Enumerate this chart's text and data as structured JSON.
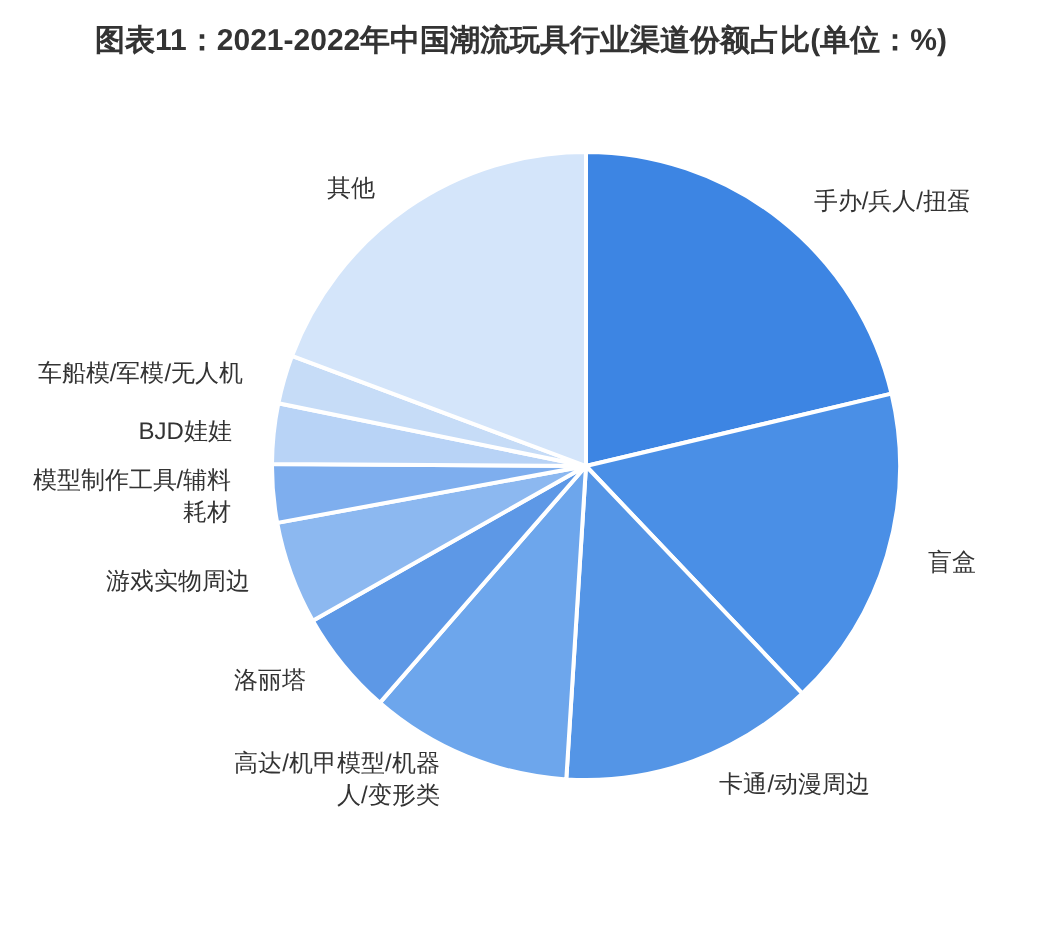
{
  "chart_data": {
    "type": "pie",
    "title": "图表11：2021-2022年中国潮流玩具行业渠道份额占比(单位：%)",
    "categories": [
      "手办/兵人/扭蛋",
      "盲盒",
      "卡通/动漫周边",
      "高达/机甲模型/机器人/变形类",
      "洛丽塔",
      "游戏实物周边",
      "模型制作工具/辅料耗材",
      "BJD娃娃",
      "车船模/军模/无人机",
      "其他"
    ],
    "values": [
      21.3,
      16.6,
      13.1,
      10.4,
      5.4,
      5.3,
      3.0,
      3.1,
      2.5,
      19.3
    ],
    "colors": [
      "#3d85e3",
      "#4a8fe6",
      "#5495e6",
      "#6da6ec",
      "#5d98e6",
      "#8cb8f0",
      "#7eaeee",
      "#b8d3f6",
      "#c6dcf7",
      "#d4e5fa"
    ]
  }
}
